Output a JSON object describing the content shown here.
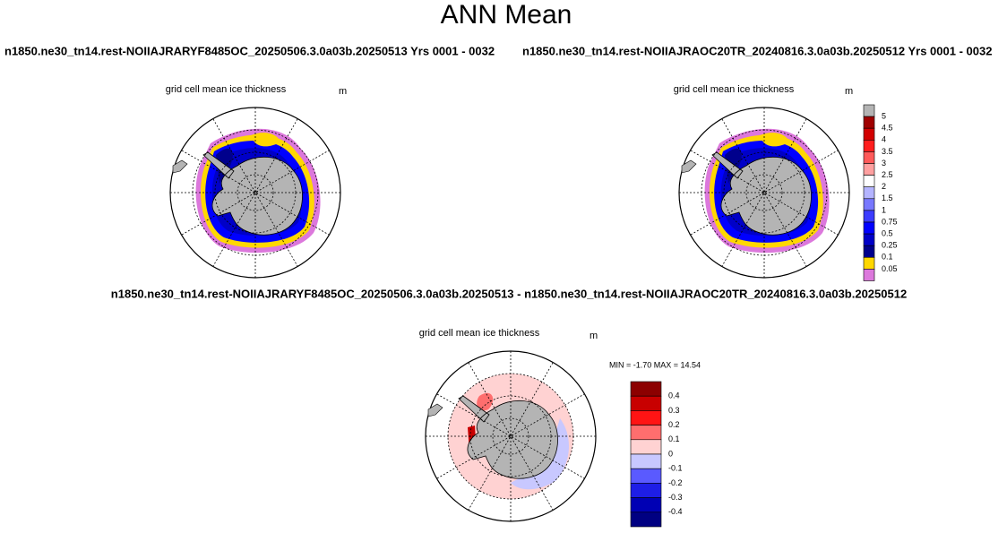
{
  "header": {
    "title": "ANN Mean",
    "left_subtitle": "n1850.ne30_tn14.rest-NOIIAJRARYF8485OC_20250506.3.0a03b.20250513  Yrs 0001 - 0032",
    "right_subtitle": "n1850.ne30_tn14.rest-NOIIAJRAOC20TR_20240816.3.0a03b.20250512  Yrs 0001 - 0032",
    "diff_subtitle": "n1850.ne30_tn14.rest-NOIIAJRARYF8485OC_20250506.3.0a03b.20250513 - n1850.ne30_tn14.rest-NOIIAJRAOC20TR_20240816.3.0a03b.20250512"
  },
  "panels": [
    {
      "label": "grid cell mean ice thickness",
      "units": "m"
    },
    {
      "label": "grid cell mean ice thickness",
      "units": "m"
    },
    {
      "label": "grid cell mean ice thickness",
      "units": "m",
      "stats": "MIN =  -1.70 MAX =  14.54"
    }
  ],
  "colorbars": [
    {
      "labels": [
        "5",
        "4.5",
        "4",
        "3.5",
        "3",
        "2.5",
        "2",
        "1.5",
        "1",
        "0.75",
        "0.5",
        "0.25",
        "0.1",
        "0.05"
      ],
      "colors": [
        "#b4b4b4",
        "#a00000",
        "#d20000",
        "#ff1e1e",
        "#ff5a5a",
        "#ffa0a0",
        "#ffffff",
        "#b4b4ff",
        "#7878ff",
        "#3c3cff",
        "#0000ff",
        "#0000c8",
        "#00008c",
        "#ffd700",
        "#dc78dc"
      ]
    },
    {
      "labels": [
        "0.4",
        "0.3",
        "0.2",
        "0.1",
        "0",
        "-0.1",
        "-0.2",
        "-0.3",
        "-0.4"
      ],
      "colors": [
        "#8c0000",
        "#c80000",
        "#ff1414",
        "#ff6e6e",
        "#ffd2d2",
        "#c8c8ff",
        "#5a5aff",
        "#1e1ee6",
        "#0000b4",
        "#000082"
      ]
    }
  ]
}
